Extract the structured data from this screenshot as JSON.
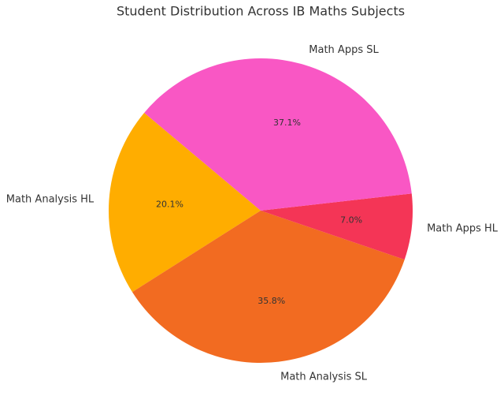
{
  "chart_data": {
    "type": "pie",
    "title": "Student Distribution Across IB Maths Subjects",
    "categories": [
      "Math Analysis HL",
      "Math Analysis SL",
      "Math Apps HL",
      "Math Apps SL"
    ],
    "values": [
      20.1,
      35.8,
      7.0,
      37.1
    ],
    "value_labels": [
      "20.1%",
      "35.8%",
      "7.0%",
      "37.1%"
    ],
    "colors": [
      "#ffad00",
      "#f26b21",
      "#f43556",
      "#f957c4"
    ]
  }
}
